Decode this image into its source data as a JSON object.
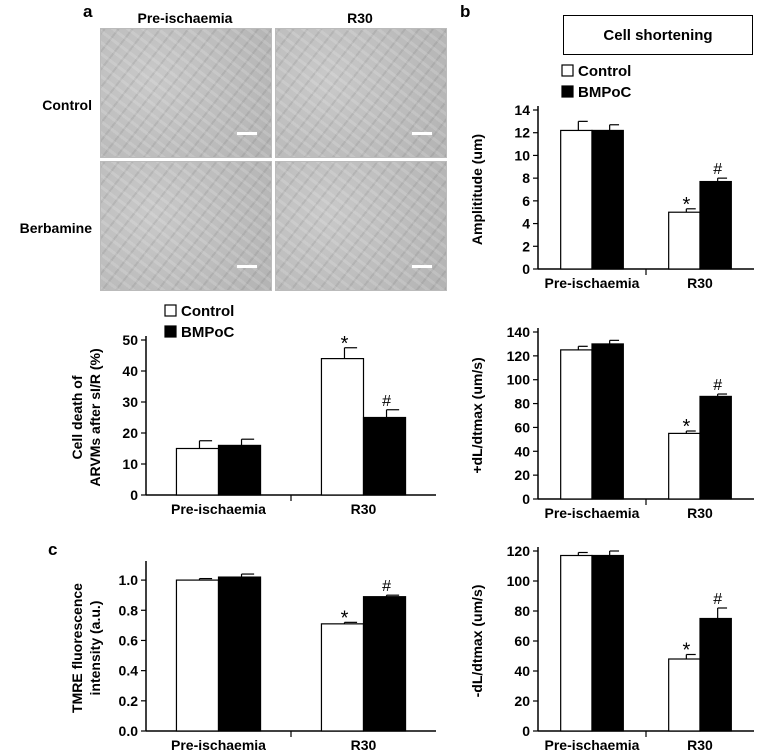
{
  "panels": {
    "a": "a",
    "b": "b",
    "c": "c"
  },
  "micrograph_grid": {
    "columns": [
      "Pre-ischaemia",
      "R30"
    ],
    "rows": [
      "Control",
      "Berbamine"
    ]
  },
  "cell_shortening_title": "Cell shortening",
  "colors": {
    "control": "#ffffff",
    "bmpoc": "#000000",
    "axis": "#000000"
  },
  "chart_data": [
    {
      "id": "cell-death",
      "type": "bar",
      "categories": [
        "Pre-ischaemia",
        "R30"
      ],
      "ylabel": "Cell death of ARVMs after sI/R (%)",
      "ylim": [
        0,
        50
      ],
      "yticks": [
        0,
        10,
        20,
        30,
        40,
        50
      ],
      "legend": [
        "Control",
        "BMPoC"
      ],
      "legend_position": "top",
      "series": [
        {
          "name": "Control",
          "values": [
            15,
            44
          ],
          "errors": [
            2.5,
            3.5
          ],
          "annotations": [
            "",
            "*"
          ]
        },
        {
          "name": "BMPoC",
          "values": [
            16,
            25
          ],
          "errors": [
            2,
            2.5
          ],
          "annotations": [
            "",
            "#"
          ]
        }
      ]
    },
    {
      "id": "tmre",
      "type": "bar",
      "categories": [
        "Pre-ischaemia",
        "R30"
      ],
      "ylabel": "TMRE fluorescence intensity (a.u.)",
      "ylim": [
        0,
        1.1
      ],
      "yticks": [
        "0.0",
        "0.2",
        "0.4",
        "0.6",
        "0.8",
        "1.0"
      ],
      "series": [
        {
          "name": "Control",
          "values": [
            1.0,
            0.71
          ],
          "errors": [
            0.01,
            0.01
          ],
          "annotations": [
            "",
            "*"
          ]
        },
        {
          "name": "BMPoC",
          "values": [
            1.02,
            0.89
          ],
          "errors": [
            0.02,
            0.01
          ],
          "annotations": [
            "",
            "#"
          ]
        }
      ]
    },
    {
      "id": "amplitude",
      "type": "bar",
      "categories": [
        "Pre-ischaemia",
        "R30"
      ],
      "ylabel": "Amplititude (um)",
      "ylim": [
        0,
        14
      ],
      "yticks": [
        0,
        2,
        4,
        6,
        8,
        10,
        12,
        14
      ],
      "legend": [
        "Control",
        "BMPoC"
      ],
      "legend_position": "top-left",
      "series": [
        {
          "name": "Control",
          "values": [
            12.2,
            5.0
          ],
          "errors": [
            0.8,
            0.3
          ],
          "annotations": [
            "",
            "*"
          ]
        },
        {
          "name": "BMPoC",
          "values": [
            12.2,
            7.7
          ],
          "errors": [
            0.5,
            0.3
          ],
          "annotations": [
            "",
            "#"
          ]
        }
      ]
    },
    {
      "id": "plus-dldt",
      "type": "bar",
      "categories": [
        "Pre-ischaemia",
        "R30"
      ],
      "ylabel": "+dL/dtmax (um/s)",
      "ylim": [
        0,
        140
      ],
      "yticks": [
        0,
        20,
        40,
        60,
        80,
        100,
        120,
        140
      ],
      "series": [
        {
          "name": "Control",
          "values": [
            125,
            55
          ],
          "errors": [
            3,
            2
          ],
          "annotations": [
            "",
            "*"
          ]
        },
        {
          "name": "BMPoC",
          "values": [
            130,
            86
          ],
          "errors": [
            3,
            2
          ],
          "annotations": [
            "",
            "#"
          ]
        }
      ]
    },
    {
      "id": "minus-dldt",
      "type": "bar",
      "categories": [
        "Pre-ischaemia",
        "R30"
      ],
      "ylabel": "-dL/dtmax (um/s)",
      "ylim": [
        0,
        120
      ],
      "yticks": [
        0,
        20,
        40,
        60,
        80,
        100,
        120
      ],
      "series": [
        {
          "name": "Control",
          "values": [
            117,
            48
          ],
          "errors": [
            2,
            3
          ],
          "annotations": [
            "",
            "*"
          ]
        },
        {
          "name": "BMPoC",
          "values": [
            117,
            75
          ],
          "errors": [
            3,
            7
          ],
          "annotations": [
            "",
            "#"
          ]
        }
      ]
    }
  ]
}
